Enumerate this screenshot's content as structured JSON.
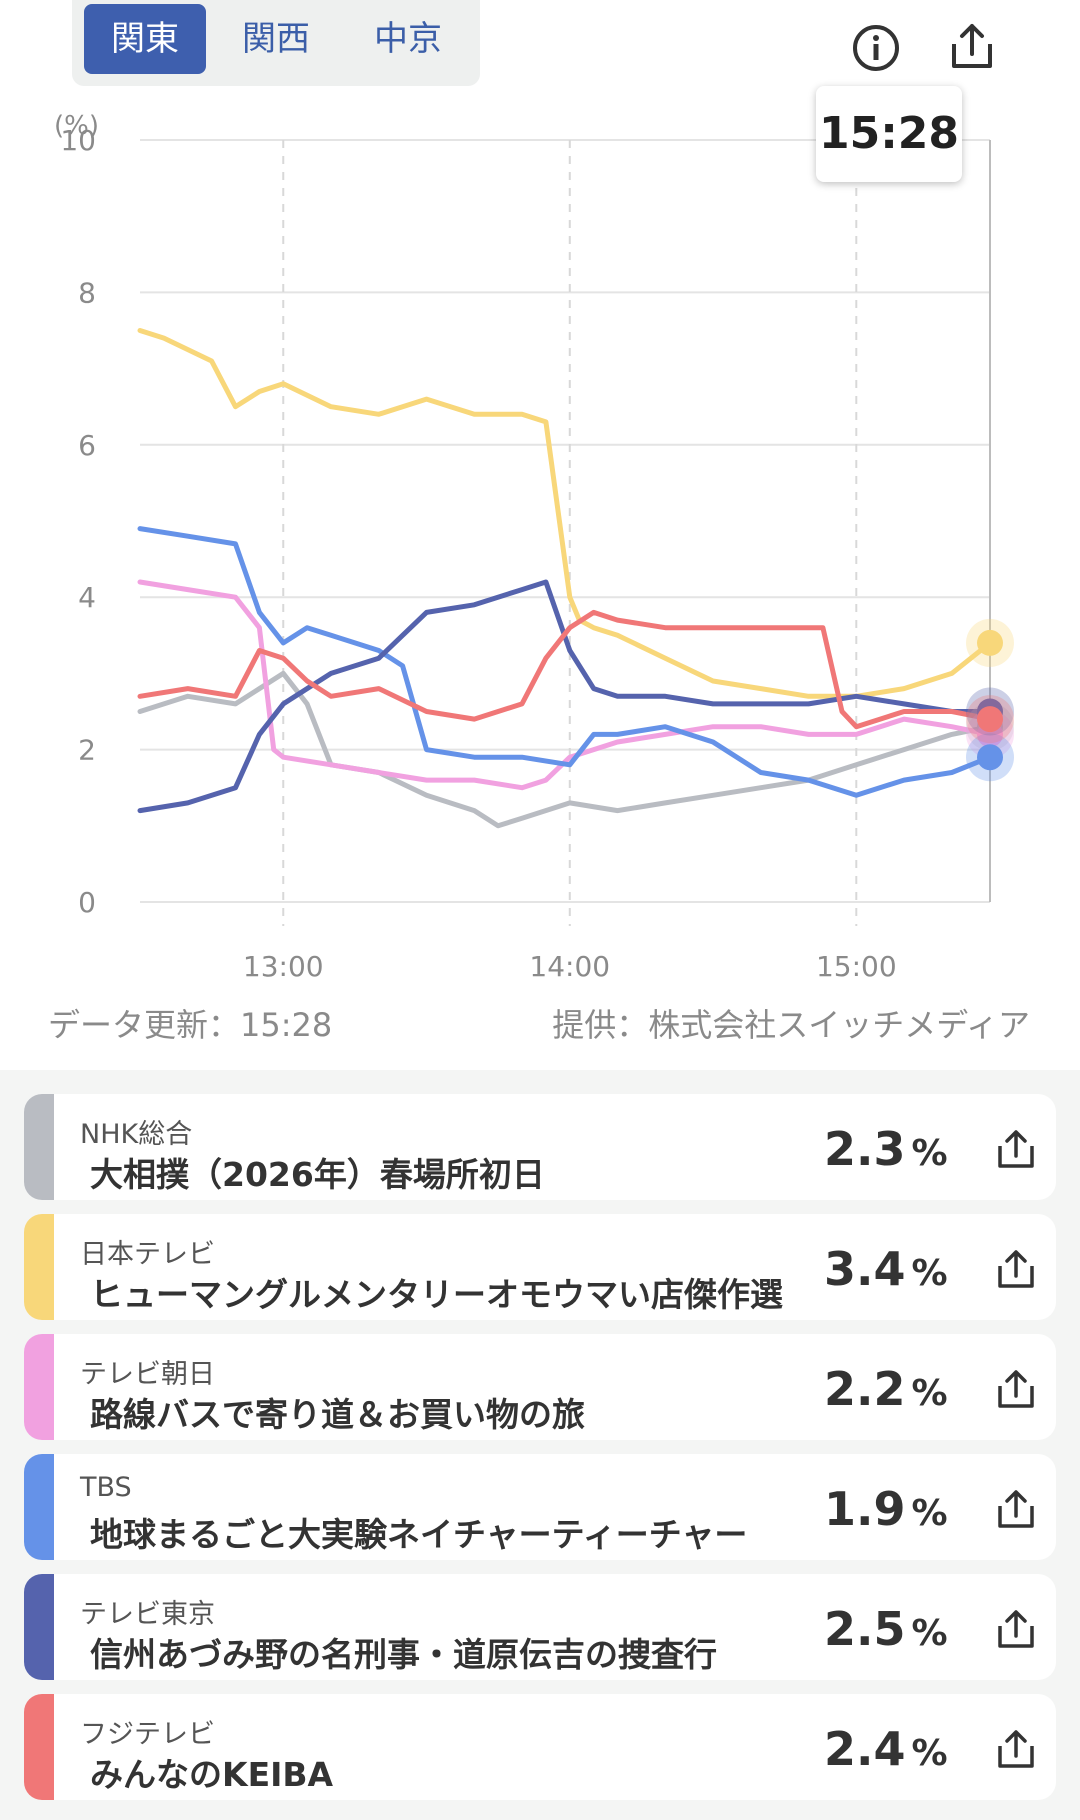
{
  "region_tabs": [
    {
      "label": "関東",
      "active": true
    },
    {
      "label": "関西",
      "active": false
    },
    {
      "label": "中京",
      "active": false
    }
  ],
  "header_icons": {
    "info": "info-icon",
    "share": "share-icon"
  },
  "tooltip_time": "15:28",
  "footer": {
    "updated": "データ更新：15:28",
    "provider": "提供：株式会社スイッチメディア"
  },
  "chart_data": {
    "type": "line",
    "ylabel": "(%)",
    "ylim": [
      0,
      10
    ],
    "yticks": [
      "0",
      "2",
      "4",
      "6",
      "8",
      "10"
    ],
    "xticks": [
      "13:00",
      "14:00",
      "15:00"
    ],
    "xrange": [
      "12:30",
      "15:28"
    ],
    "grid": true,
    "series": [
      {
        "name": "NHK総合",
        "color": "#b9bcc2",
        "x": [
          "12:30",
          "12:40",
          "12:50",
          "12:55",
          "13:00",
          "13:05",
          "13:10",
          "13:20",
          "13:30",
          "13:40",
          "13:45",
          "13:50",
          "14:00",
          "14:10",
          "14:20",
          "14:30",
          "14:40",
          "14:50",
          "15:00",
          "15:10",
          "15:20",
          "15:28"
        ],
        "y": [
          2.5,
          2.7,
          2.6,
          2.8,
          3.0,
          2.6,
          1.8,
          1.7,
          1.4,
          1.2,
          1.0,
          1.1,
          1.3,
          1.2,
          1.3,
          1.4,
          1.5,
          1.6,
          1.8,
          2.0,
          2.2,
          2.3
        ]
      },
      {
        "name": "日本テレビ",
        "color": "#f8d77a",
        "x": [
          "12:30",
          "12:35",
          "12:45",
          "12:50",
          "12:55",
          "13:00",
          "13:10",
          "13:20",
          "13:30",
          "13:40",
          "13:50",
          "13:55",
          "14:00",
          "14:02",
          "14:05",
          "14:10",
          "14:20",
          "14:30",
          "14:40",
          "14:50",
          "15:00",
          "15:10",
          "15:20",
          "15:28"
        ],
        "y": [
          7.5,
          7.4,
          7.1,
          6.5,
          6.7,
          6.8,
          6.5,
          6.4,
          6.6,
          6.4,
          6.4,
          6.3,
          4.0,
          3.7,
          3.6,
          3.5,
          3.2,
          2.9,
          2.8,
          2.7,
          2.7,
          2.8,
          3.0,
          3.4
        ]
      },
      {
        "name": "テレビ朝日",
        "color": "#f1a1e0",
        "x": [
          "12:30",
          "12:40",
          "12:50",
          "12:55",
          "12:58",
          "13:00",
          "13:10",
          "13:20",
          "13:30",
          "13:40",
          "13:50",
          "13:55",
          "14:00",
          "14:05",
          "14:10",
          "14:20",
          "14:30",
          "14:40",
          "14:50",
          "15:00",
          "15:10",
          "15:20",
          "15:28"
        ],
        "y": [
          4.2,
          4.1,
          4.0,
          3.6,
          2.0,
          1.9,
          1.8,
          1.7,
          1.6,
          1.6,
          1.5,
          1.6,
          1.9,
          2.0,
          2.1,
          2.2,
          2.3,
          2.3,
          2.2,
          2.2,
          2.4,
          2.3,
          2.2
        ]
      },
      {
        "name": "TBS",
        "color": "#6592e8",
        "x": [
          "12:30",
          "12:40",
          "12:50",
          "12:55",
          "13:00",
          "13:05",
          "13:10",
          "13:15",
          "13:20",
          "13:25",
          "13:30",
          "13:40",
          "13:50",
          "14:00",
          "14:05",
          "14:10",
          "14:20",
          "14:30",
          "14:40",
          "14:50",
          "15:00",
          "15:10",
          "15:20",
          "15:28"
        ],
        "y": [
          4.9,
          4.8,
          4.7,
          3.8,
          3.4,
          3.6,
          3.5,
          3.4,
          3.3,
          3.1,
          2.0,
          1.9,
          1.9,
          1.8,
          2.2,
          2.2,
          2.3,
          2.1,
          1.7,
          1.6,
          1.4,
          1.6,
          1.7,
          1.9
        ]
      },
      {
        "name": "テレビ東京",
        "color": "#5563ad",
        "x": [
          "12:30",
          "12:40",
          "12:50",
          "12:55",
          "13:00",
          "13:05",
          "13:10",
          "13:20",
          "13:30",
          "13:40",
          "13:50",
          "13:55",
          "14:00",
          "14:05",
          "14:10",
          "14:20",
          "14:30",
          "14:40",
          "14:50",
          "15:00",
          "15:10",
          "15:20",
          "15:28"
        ],
        "y": [
          1.2,
          1.3,
          1.5,
          2.2,
          2.6,
          2.8,
          3.0,
          3.2,
          3.8,
          3.9,
          4.1,
          4.2,
          3.3,
          2.8,
          2.7,
          2.7,
          2.6,
          2.6,
          2.6,
          2.7,
          2.6,
          2.5,
          2.5
        ]
      },
      {
        "name": "フジテレビ",
        "color": "#f07777",
        "x": [
          "12:30",
          "12:40",
          "12:50",
          "12:55",
          "13:00",
          "13:05",
          "13:10",
          "13:20",
          "13:30",
          "13:40",
          "13:50",
          "13:55",
          "14:00",
          "14:05",
          "14:10",
          "14:20",
          "14:30",
          "14:40",
          "14:50",
          "14:53",
          "14:57",
          "15:00",
          "15:10",
          "15:20",
          "15:28"
        ],
        "y": [
          2.7,
          2.8,
          2.7,
          3.3,
          3.2,
          2.9,
          2.7,
          2.8,
          2.5,
          2.4,
          2.6,
          3.2,
          3.6,
          3.8,
          3.7,
          3.6,
          3.6,
          3.6,
          3.6,
          3.6,
          2.5,
          2.3,
          2.5,
          2.5,
          2.4
        ]
      }
    ]
  },
  "programs": [
    {
      "channel": "NHK総合",
      "program": "大相撲（2026年）春場所初日",
      "rating": "2.3",
      "unit": "%",
      "color": "#b9bcc2"
    },
    {
      "channel": "日本テレビ",
      "program": "ヒューマングルメンタリーオモウマい店傑作選",
      "rating": "3.4",
      "unit": "%",
      "color": "#f8d77a"
    },
    {
      "channel": "テレビ朝日",
      "program": "路線バスで寄り道＆お買い物の旅",
      "rating": "2.2",
      "unit": "%",
      "color": "#f1a1e0"
    },
    {
      "channel": "TBS",
      "program": "地球まるごと大実験ネイチャーティーチャー",
      "rating": "1.9",
      "unit": "%",
      "color": "#6592e8"
    },
    {
      "channel": "テレビ東京",
      "program": "信州あづみ野の名刑事・道原伝吉の捜査行",
      "rating": "2.5",
      "unit": "%",
      "color": "#5563ad"
    },
    {
      "channel": "フジテレビ",
      "program": "みんなのKEIBA",
      "rating": "2.4",
      "unit": "%",
      "color": "#f07777"
    }
  ]
}
